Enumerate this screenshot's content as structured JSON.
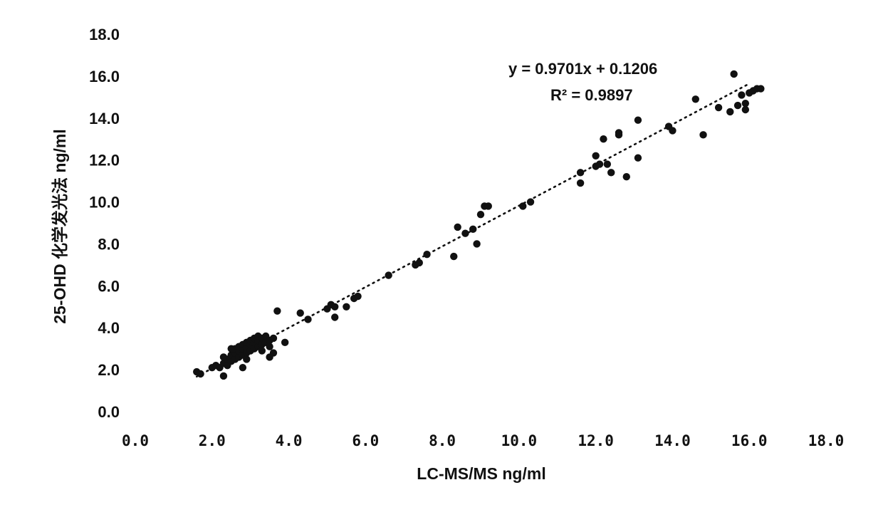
{
  "chart_data": {
    "type": "scatter",
    "title": "",
    "xlabel": "LC-MS/MS  ng/ml",
    "ylabel": "25-OHD 化学发光法  ng/ml",
    "xlim": [
      0,
      18
    ],
    "ylim": [
      0,
      18
    ],
    "xticks": [
      "0.0",
      "2.0",
      "4.0",
      "6.0",
      "8.0",
      "10.0",
      "12.0",
      "14.0",
      "16.0",
      "18.0"
    ],
    "yticks": [
      "0.0",
      "2.0",
      "4.0",
      "6.0",
      "8.0",
      "10.0",
      "12.0",
      "14.0",
      "16.0",
      "18.0"
    ],
    "grid": false,
    "legend": "none",
    "marker_color": "#111111",
    "trendline": {
      "style": "dotted",
      "slope": 0.9701,
      "intercept": 0.1206,
      "x_range": [
        1.6,
        16.0
      ]
    },
    "annotations": {
      "equation": "y = 0.9701x + 0.1206",
      "r_squared": "R² = 0.9897"
    },
    "points": [
      [
        1.6,
        1.9
      ],
      [
        1.7,
        1.8
      ],
      [
        2.3,
        1.7
      ],
      [
        2.0,
        2.1
      ],
      [
        2.1,
        2.2
      ],
      [
        2.2,
        2.1
      ],
      [
        2.3,
        2.3
      ],
      [
        2.4,
        2.2
      ],
      [
        2.4,
        2.5
      ],
      [
        2.5,
        2.4
      ],
      [
        2.5,
        2.7
      ],
      [
        2.6,
        2.5
      ],
      [
        2.6,
        2.8
      ],
      [
        2.6,
        3.0
      ],
      [
        2.7,
        2.6
      ],
      [
        2.7,
        2.9
      ],
      [
        2.7,
        3.1
      ],
      [
        2.8,
        2.7
      ],
      [
        2.8,
        3.0
      ],
      [
        2.8,
        3.2
      ],
      [
        2.9,
        2.8
      ],
      [
        2.9,
        3.1
      ],
      [
        2.9,
        3.3
      ],
      [
        3.0,
        2.9
      ],
      [
        3.0,
        3.2
      ],
      [
        3.0,
        3.4
      ],
      [
        3.1,
        3.0
      ],
      [
        3.1,
        3.3
      ],
      [
        3.1,
        3.5
      ],
      [
        3.2,
        3.1
      ],
      [
        3.2,
        3.4
      ],
      [
        3.2,
        3.6
      ],
      [
        3.3,
        3.2
      ],
      [
        3.3,
        3.5
      ],
      [
        3.4,
        3.3
      ],
      [
        3.4,
        3.6
      ],
      [
        3.5,
        3.4
      ],
      [
        3.5,
        3.1
      ],
      [
        3.6,
        3.5
      ],
      [
        2.5,
        3.0
      ],
      [
        2.3,
        2.6
      ],
      [
        2.9,
        2.5
      ],
      [
        3.3,
        2.9
      ],
      [
        2.8,
        2.1
      ],
      [
        3.5,
        2.6
      ],
      [
        3.6,
        2.8
      ],
      [
        3.7,
        4.8
      ],
      [
        3.9,
        3.3
      ],
      [
        4.3,
        4.7
      ],
      [
        4.5,
        4.4
      ],
      [
        5.0,
        4.9
      ],
      [
        5.1,
        5.1
      ],
      [
        5.2,
        5.0
      ],
      [
        5.2,
        4.5
      ],
      [
        5.5,
        5.0
      ],
      [
        5.7,
        5.4
      ],
      [
        5.8,
        5.5
      ],
      [
        6.6,
        6.5
      ],
      [
        7.3,
        7.0
      ],
      [
        7.4,
        7.1
      ],
      [
        7.6,
        7.5
      ],
      [
        8.3,
        7.4
      ],
      [
        8.4,
        8.8
      ],
      [
        8.6,
        8.5
      ],
      [
        8.8,
        8.7
      ],
      [
        8.9,
        8.0
      ],
      [
        9.0,
        9.4
      ],
      [
        9.1,
        9.8
      ],
      [
        9.2,
        9.8
      ],
      [
        10.1,
        9.8
      ],
      [
        10.3,
        10.0
      ],
      [
        11.6,
        11.4
      ],
      [
        11.6,
        10.9
      ],
      [
        12.0,
        12.2
      ],
      [
        12.0,
        11.7
      ],
      [
        12.1,
        11.8
      ],
      [
        12.2,
        13.0
      ],
      [
        12.3,
        11.8
      ],
      [
        12.4,
        11.4
      ],
      [
        12.6,
        13.2
      ],
      [
        12.6,
        13.3
      ],
      [
        12.8,
        11.2
      ],
      [
        13.1,
        12.1
      ],
      [
        13.1,
        13.9
      ],
      [
        13.9,
        13.6
      ],
      [
        14.0,
        13.4
      ],
      [
        14.6,
        14.9
      ],
      [
        14.8,
        13.2
      ],
      [
        15.2,
        14.5
      ],
      [
        15.6,
        16.1
      ],
      [
        15.7,
        14.6
      ],
      [
        15.8,
        15.1
      ],
      [
        15.9,
        14.4
      ],
      [
        15.9,
        14.7
      ],
      [
        16.0,
        15.2
      ],
      [
        16.1,
        15.3
      ],
      [
        16.2,
        15.4
      ],
      [
        16.3,
        15.4
      ],
      [
        15.5,
        14.3
      ]
    ]
  }
}
